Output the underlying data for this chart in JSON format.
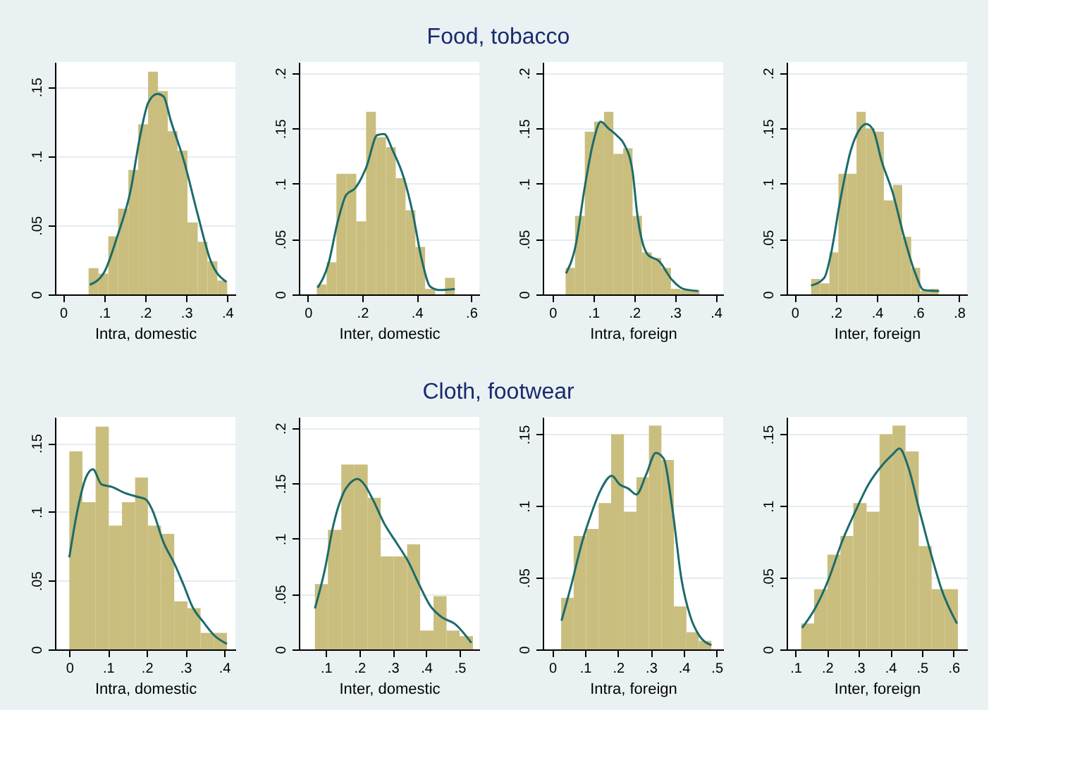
{
  "chart_data": [
    {
      "type": "other",
      "title": "Food, tobacco"
    },
    {
      "type": "histogram",
      "xlabel": "Intra, domestic",
      "color": "#c9be7e",
      "bins": [
        0.062,
        0.086,
        0.11,
        0.134,
        0.159,
        0.183,
        0.207,
        0.231,
        0.255,
        0.279,
        0.303,
        0.328,
        0.352,
        0.376,
        0.4
      ],
      "values": [
        0.019,
        0.015,
        0.042,
        0.062,
        0.09,
        0.123,
        0.161,
        0.147,
        0.118,
        0.104,
        0.052,
        0.038,
        0.024,
        0.01
      ],
      "series": [
        {
          "type": "line",
          "color": "#1c6b6b",
          "x": [
            0.065,
            0.1,
            0.132,
            0.165,
            0.186,
            0.208,
            0.23,
            0.245,
            0.262,
            0.295,
            0.327,
            0.36,
            0.398
          ],
          "values": [
            0.007,
            0.016,
            0.042,
            0.076,
            0.112,
            0.139,
            0.145,
            0.143,
            0.126,
            0.096,
            0.059,
            0.024,
            0.009
          ]
        }
      ],
      "xlim": [
        -0.02,
        0.42
      ],
      "ylim": [
        0,
        0.168
      ],
      "xticks": [
        {
          "value": 0,
          "label": "0"
        },
        {
          "value": 0.1,
          "label": ".1"
        },
        {
          "value": 0.2,
          "label": ".2"
        },
        {
          "value": 0.3,
          "label": ".3"
        },
        {
          "value": 0.4,
          "label": ".4"
        }
      ],
      "yticks": [
        {
          "value": 0,
          "label": "0"
        },
        {
          "value": 0.05,
          "label": ".05"
        },
        {
          "value": 0.1,
          "label": ".1"
        },
        {
          "value": 0.15,
          "label": ".15"
        }
      ],
      "grid": "y"
    },
    {
      "type": "histogram",
      "xlabel": "Inter, domestic",
      "color": "#c9be7e",
      "bins": [
        0.033,
        0.069,
        0.105,
        0.142,
        0.178,
        0.214,
        0.25,
        0.287,
        0.323,
        0.359,
        0.395,
        0.431,
        0.468,
        0.504,
        0.54
      ],
      "values": [
        0.009,
        0.029,
        0.109,
        0.109,
        0.066,
        0.165,
        0.142,
        0.133,
        0.105,
        0.076,
        0.043,
        0.005,
        0,
        0.015
      ],
      "series": [
        {
          "type": "line",
          "color": "#1c6b6b",
          "x": [
            0.036,
            0.076,
            0.109,
            0.141,
            0.174,
            0.215,
            0.255,
            0.28,
            0.312,
            0.353,
            0.385,
            0.418,
            0.45,
            0.483,
            0.54
          ],
          "values": [
            0.006,
            0.028,
            0.065,
            0.09,
            0.096,
            0.115,
            0.144,
            0.145,
            0.13,
            0.105,
            0.074,
            0.032,
            0.007,
            0.004,
            0.005
          ]
        }
      ],
      "xlim": [
        -0.033,
        0.63
      ],
      "ylim": [
        0,
        0.21
      ],
      "xticks": [
        {
          "value": 0,
          "label": "0"
        },
        {
          "value": 0.2,
          "label": ".2"
        },
        {
          "value": 0.4,
          "label": ".4"
        },
        {
          "value": 0.6,
          "label": ".6"
        }
      ],
      "yticks": [
        {
          "value": 0,
          "label": "0"
        },
        {
          "value": 0.05,
          "label": ".05"
        },
        {
          "value": 0.1,
          "label": ".1"
        },
        {
          "value": 0.15,
          "label": ".15"
        },
        {
          "value": 0.2,
          "label": ".2"
        }
      ],
      "grid": "y"
    },
    {
      "type": "histogram",
      "xlabel": "Intra, foreign",
      "color": "#c9be7e",
      "bins": [
        0.032,
        0.055,
        0.079,
        0.102,
        0.126,
        0.149,
        0.173,
        0.196,
        0.219,
        0.243,
        0.266,
        0.29,
        0.313,
        0.337,
        0.36
      ],
      "values": [
        0.024,
        0.071,
        0.147,
        0.156,
        0.165,
        0.127,
        0.132,
        0.071,
        0.038,
        0.033,
        0.024,
        0.005,
        0.004,
        0.004
      ],
      "series": [
        {
          "type": "line",
          "color": "#1c6b6b",
          "x": [
            0.033,
            0.057,
            0.078,
            0.1,
            0.118,
            0.137,
            0.159,
            0.175,
            0.196,
            0.207,
            0.233,
            0.261,
            0.293,
            0.32,
            0.357
          ],
          "values": [
            0.019,
            0.045,
            0.095,
            0.138,
            0.156,
            0.15,
            0.143,
            0.136,
            0.111,
            0.074,
            0.036,
            0.03,
            0.013,
            0.005,
            0.003
          ]
        }
      ],
      "xlim": [
        -0.024,
        0.418
      ],
      "ylim": [
        0,
        0.21
      ],
      "xticks": [
        {
          "value": 0,
          "label": "0"
        },
        {
          "value": 0.1,
          "label": ".1"
        },
        {
          "value": 0.2,
          "label": ".2"
        },
        {
          "value": 0.3,
          "label": ".3"
        },
        {
          "value": 0.4,
          "label": ".4"
        }
      ],
      "yticks": [
        {
          "value": 0,
          "label": "0"
        },
        {
          "value": 0.05,
          "label": ".05"
        },
        {
          "value": 0.1,
          "label": ".1"
        },
        {
          "value": 0.15,
          "label": ".15"
        },
        {
          "value": 0.2,
          "label": ".2"
        }
      ],
      "grid": "y"
    },
    {
      "type": "histogram",
      "xlabel": "Inter, foreign",
      "color": "#c9be7e",
      "bins": [
        0.08,
        0.124,
        0.169,
        0.213,
        0.257,
        0.301,
        0.346,
        0.39,
        0.434,
        0.479,
        0.523,
        0.567,
        0.611,
        0.656,
        0.7
      ],
      "values": [
        0.014,
        0.01,
        0.038,
        0.109,
        0.109,
        0.165,
        0.15,
        0.147,
        0.085,
        0.099,
        0.052,
        0.024,
        0.003,
        0.005
      ],
      "series": [
        {
          "type": "line",
          "color": "#1c6b6b",
          "x": [
            0.08,
            0.144,
            0.176,
            0.219,
            0.273,
            0.316,
            0.348,
            0.381,
            0.424,
            0.477,
            0.531,
            0.585,
            0.628,
            0.703
          ],
          "values": [
            0.008,
            0.015,
            0.036,
            0.082,
            0.13,
            0.149,
            0.154,
            0.149,
            0.12,
            0.092,
            0.053,
            0.02,
            0.004,
            0.003
          ]
        }
      ],
      "xlim": [
        -0.039,
        0.839
      ],
      "ylim": [
        0,
        0.21
      ],
      "xticks": [
        {
          "value": 0,
          "label": "0"
        },
        {
          "value": 0.2,
          "label": ".2"
        },
        {
          "value": 0.4,
          "label": ".4"
        },
        {
          "value": 0.6,
          "label": ".6"
        },
        {
          "value": 0.8,
          "label": ".8"
        }
      ],
      "yticks": [
        {
          "value": 0,
          "label": "0"
        },
        {
          "value": 0.05,
          "label": ".05"
        },
        {
          "value": 0.1,
          "label": ".1"
        },
        {
          "value": 0.15,
          "label": ".15"
        },
        {
          "value": 0.2,
          "label": ".2"
        }
      ],
      "grid": "y"
    },
    {
      "type": "other",
      "title": "Cloth, footwear"
    },
    {
      "type": "histogram",
      "xlabel": "Intra, domestic",
      "color": "#c9be7e",
      "bins": [
        0,
        0.034,
        0.068,
        0.102,
        0.136,
        0.17,
        0.203,
        0.237,
        0.271,
        0.305,
        0.339,
        0.373,
        0.407
      ],
      "values": [
        0.144,
        0.107,
        0.162,
        0.09,
        0.107,
        0.125,
        0.09,
        0.084,
        0.035,
        0.03,
        0.012,
        0.012
      ],
      "series": [
        {
          "type": "line",
          "color": "#1c6b6b",
          "x": [
            0,
            0.021,
            0.043,
            0.061,
            0.083,
            0.112,
            0.141,
            0.175,
            0.198,
            0.215,
            0.243,
            0.272,
            0.295,
            0.318,
            0.346,
            0.375,
            0.407
          ],
          "values": [
            0.067,
            0.101,
            0.125,
            0.131,
            0.12,
            0.118,
            0.114,
            0.111,
            0.109,
            0.101,
            0.078,
            0.062,
            0.047,
            0.031,
            0.02,
            0.01,
            0.004
          ]
        }
      ],
      "xlim": [
        -0.037,
        0.429
      ],
      "ylim": [
        0,
        0.169
      ],
      "xticks": [
        {
          "value": 0,
          "label": "0"
        },
        {
          "value": 0.1,
          "label": ".1"
        },
        {
          "value": 0.2,
          "label": ".2"
        },
        {
          "value": 0.3,
          "label": ".3"
        },
        {
          "value": 0.4,
          "label": ".4"
        }
      ],
      "yticks": [
        {
          "value": 0,
          "label": "0"
        },
        {
          "value": 0.05,
          "label": ".05"
        },
        {
          "value": 0.1,
          "label": ".1"
        },
        {
          "value": 0.15,
          "label": ".15"
        }
      ],
      "grid": "y"
    },
    {
      "type": "histogram",
      "xlabel": "Inter, domestic",
      "color": "#c9be7e",
      "bins": [
        0.067,
        0.106,
        0.146,
        0.185,
        0.225,
        0.264,
        0.303,
        0.343,
        0.382,
        0.422,
        0.461,
        0.5,
        0.54
      ],
      "values": [
        0.059,
        0.108,
        0.167,
        0.167,
        0.137,
        0.084,
        0.084,
        0.095,
        0.017,
        0.048,
        0.017,
        0.012
      ],
      "series": [
        {
          "type": "line",
          "color": "#1c6b6b",
          "x": [
            0.067,
            0.096,
            0.122,
            0.149,
            0.175,
            0.195,
            0.215,
            0.241,
            0.274,
            0.314,
            0.347,
            0.38,
            0.413,
            0.447,
            0.486,
            0.535
          ],
          "values": [
            0.037,
            0.071,
            0.112,
            0.139,
            0.151,
            0.154,
            0.149,
            0.135,
            0.114,
            0.095,
            0.079,
            0.058,
            0.039,
            0.029,
            0.023,
            0.006
          ]
        }
      ],
      "xlim": [
        0.019,
        0.559
      ],
      "ylim": [
        0,
        0.21
      ],
      "xticks": [
        {
          "value": 0.1,
          "label": ".1"
        },
        {
          "value": 0.2,
          "label": ".2"
        },
        {
          "value": 0.3,
          "label": ".3"
        },
        {
          "value": 0.4,
          "label": ".4"
        },
        {
          "value": 0.5,
          "label": ".5"
        }
      ],
      "yticks": [
        {
          "value": 0,
          "label": "0"
        },
        {
          "value": 0.05,
          "label": ".05"
        },
        {
          "value": 0.1,
          "label": ".1"
        },
        {
          "value": 0.15,
          "label": ".15"
        },
        {
          "value": 0.2,
          "label": ".2"
        }
      ],
      "grid": "y"
    },
    {
      "type": "histogram",
      "xlabel": "Intra, foreign",
      "color": "#c9be7e",
      "bins": [
        0.027,
        0.065,
        0.103,
        0.141,
        0.179,
        0.218,
        0.256,
        0.294,
        0.332,
        0.37,
        0.408,
        0.446,
        0.484
      ],
      "values": [
        0.036,
        0.079,
        0.084,
        0.102,
        0.15,
        0.096,
        0.12,
        0.156,
        0.132,
        0.03,
        0.012,
        0.006
      ],
      "series": [
        {
          "type": "line",
          "color": "#1c6b6b",
          "x": [
            0.028,
            0.058,
            0.091,
            0.118,
            0.145,
            0.181,
            0.205,
            0.232,
            0.256,
            0.286,
            0.315,
            0.339,
            0.366,
            0.393,
            0.42,
            0.446,
            0.484
          ],
          "values": [
            0.02,
            0.045,
            0.075,
            0.094,
            0.11,
            0.121,
            0.115,
            0.112,
            0.108,
            0.122,
            0.137,
            0.133,
            0.097,
            0.049,
            0.023,
            0.01,
            0.003
          ]
        }
      ],
      "xlim": [
        -0.029,
        0.52
      ],
      "ylim": [
        0,
        0.162
      ],
      "xticks": [
        {
          "value": 0,
          "label": "0"
        },
        {
          "value": 0.1,
          "label": ".1"
        },
        {
          "value": 0.2,
          "label": ".2"
        },
        {
          "value": 0.3,
          "label": ".3"
        },
        {
          "value": 0.4,
          "label": ".4"
        },
        {
          "value": 0.5,
          "label": ".5"
        }
      ],
      "yticks": [
        {
          "value": 0,
          "label": "0"
        },
        {
          "value": 0.05,
          "label": ".05"
        },
        {
          "value": 0.1,
          "label": ".1"
        },
        {
          "value": 0.15,
          "label": ".15"
        }
      ],
      "grid": "y"
    },
    {
      "type": "histogram",
      "xlabel": "Inter, foreign",
      "color": "#c9be7e",
      "bins": [
        0.118,
        0.159,
        0.201,
        0.242,
        0.283,
        0.325,
        0.366,
        0.407,
        0.448,
        0.49,
        0.531,
        0.572,
        0.614
      ],
      "values": [
        0.018,
        0.042,
        0.066,
        0.079,
        0.102,
        0.096,
        0.15,
        0.156,
        0.138,
        0.072,
        0.042,
        0.042
      ],
      "series": [
        {
          "type": "line",
          "color": "#1c6b6b",
          "x": [
            0.121,
            0.163,
            0.205,
            0.247,
            0.289,
            0.331,
            0.373,
            0.408,
            0.429,
            0.457,
            0.492,
            0.527,
            0.562,
            0.611
          ],
          "values": [
            0.015,
            0.029,
            0.049,
            0.075,
            0.096,
            0.115,
            0.128,
            0.136,
            0.14,
            0.127,
            0.097,
            0.068,
            0.042,
            0.018
          ]
        }
      ],
      "xlim": [
        0.072,
        0.643
      ],
      "ylim": [
        0,
        0.162
      ],
      "xticks": [
        {
          "value": 0.1,
          "label": ".1"
        },
        {
          "value": 0.2,
          "label": ".2"
        },
        {
          "value": 0.3,
          "label": ".3"
        },
        {
          "value": 0.4,
          "label": ".4"
        },
        {
          "value": 0.5,
          "label": ".5"
        },
        {
          "value": 0.6,
          "label": ".6"
        }
      ],
      "yticks": [
        {
          "value": 0,
          "label": "0"
        },
        {
          "value": 0.05,
          "label": ".05"
        },
        {
          "value": 0.1,
          "label": ".1"
        },
        {
          "value": 0.15,
          "label": ".15"
        }
      ],
      "grid": "y"
    }
  ]
}
